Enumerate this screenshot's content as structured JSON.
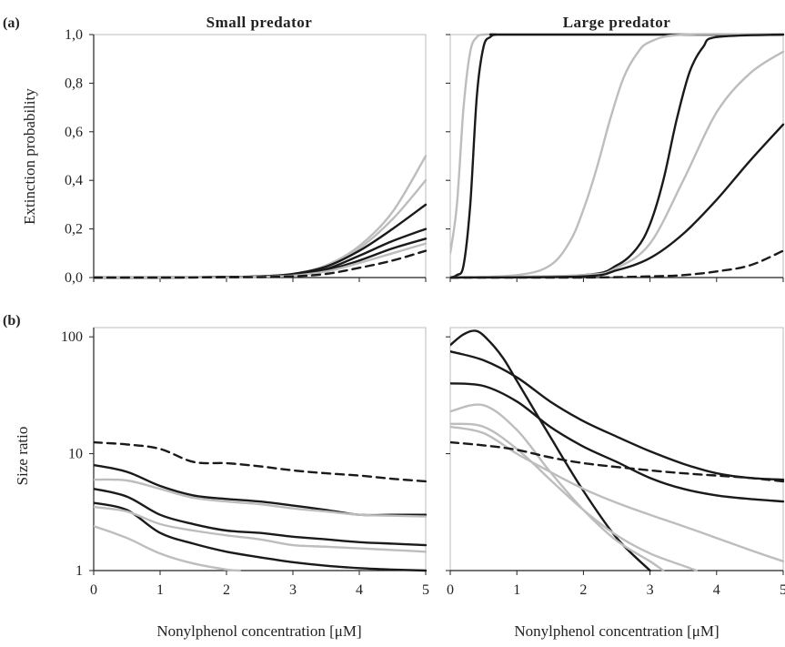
{
  "figure": {
    "col_titles": [
      "Small predator",
      "Large predator"
    ],
    "panel_letters": [
      "(a)",
      "(b)"
    ],
    "xlabel": "Nonylphenol concentration [μM]",
    "ylabel_a": "Extinction probability",
    "ylabel_b": "Size ratio",
    "xticks": [
      "0",
      "1",
      "2",
      "3",
      "4",
      "5"
    ],
    "yticks_a": [
      "0,0",
      "0,2",
      "0,4",
      "0,6",
      "0,8",
      "1,0"
    ],
    "yticks_b": [
      "1",
      "10",
      "100"
    ]
  },
  "colors": {
    "black": "#1a1a1a",
    "grey": "#bdbdbd"
  },
  "chart_data": [
    {
      "id": "small-extinction",
      "type": "line",
      "title": "Small predator",
      "panel": "(a)",
      "xlabel": "",
      "ylabel": "Extinction probability",
      "xlim": [
        0,
        5
      ],
      "ylim": [
        0,
        1
      ],
      "series": [
        {
          "color": "grey",
          "dash": false,
          "x": [
            0,
            1,
            2,
            2.5,
            3,
            3.5,
            4,
            4.5,
            5
          ],
          "y": [
            0,
            0,
            0.002,
            0.005,
            0.015,
            0.05,
            0.13,
            0.27,
            0.5
          ]
        },
        {
          "color": "grey",
          "dash": false,
          "x": [
            0,
            1,
            2,
            2.5,
            3,
            3.5,
            4,
            4.5,
            5
          ],
          "y": [
            0,
            0,
            0.002,
            0.005,
            0.015,
            0.045,
            0.12,
            0.24,
            0.4
          ]
        },
        {
          "color": "black",
          "dash": false,
          "x": [
            0,
            1,
            2,
            2.5,
            3,
            3.5,
            4,
            4.5,
            5
          ],
          "y": [
            0,
            0,
            0.002,
            0.005,
            0.015,
            0.045,
            0.11,
            0.2,
            0.3
          ]
        },
        {
          "color": "black",
          "dash": false,
          "x": [
            0,
            1,
            2,
            2.5,
            3,
            3.5,
            4,
            4.5,
            5
          ],
          "y": [
            0,
            0,
            0.002,
            0.004,
            0.012,
            0.035,
            0.09,
            0.15,
            0.2
          ]
        },
        {
          "color": "black",
          "dash": false,
          "x": [
            0,
            1,
            2,
            2.5,
            3,
            3.5,
            4,
            4.5,
            5
          ],
          "y": [
            0,
            0,
            0.002,
            0.004,
            0.01,
            0.03,
            0.07,
            0.12,
            0.16
          ]
        },
        {
          "color": "grey",
          "dash": false,
          "x": [
            0,
            1,
            2,
            2.5,
            3,
            3.5,
            4,
            4.5,
            5
          ],
          "y": [
            0,
            0,
            0.001,
            0.003,
            0.008,
            0.025,
            0.06,
            0.1,
            0.14
          ]
        },
        {
          "color": "black",
          "dash": true,
          "x": [
            0,
            1,
            2,
            2.5,
            3,
            3.5,
            4,
            4.5,
            5
          ],
          "y": [
            0,
            0,
            0.001,
            0.002,
            0.005,
            0.015,
            0.04,
            0.07,
            0.11
          ]
        }
      ]
    },
    {
      "id": "large-extinction",
      "type": "line",
      "title": "Large predator",
      "panel": "(a)",
      "xlabel": "",
      "ylabel": "",
      "xlim": [
        0,
        5
      ],
      "ylim": [
        0,
        1
      ],
      "series": [
        {
          "color": "grey",
          "dash": false,
          "x": [
            0,
            0.1,
            0.2,
            0.3,
            0.4,
            0.5,
            0.7,
            1,
            5
          ],
          "y": [
            0.1,
            0.3,
            0.7,
            0.93,
            0.99,
            1,
            1,
            1,
            1
          ]
        },
        {
          "color": "black",
          "dash": false,
          "x": [
            0,
            0.1,
            0.2,
            0.3,
            0.4,
            0.5,
            0.6,
            0.7,
            1,
            5
          ],
          "y": [
            0,
            0.01,
            0.05,
            0.3,
            0.75,
            0.95,
            0.99,
            1,
            1,
            1
          ]
        },
        {
          "color": "grey",
          "dash": false,
          "x": [
            0,
            1,
            1.5,
            1.8,
            2,
            2.2,
            2.4,
            2.6,
            2.8,
            3,
            3.5,
            5
          ],
          "y": [
            0,
            0.01,
            0.05,
            0.15,
            0.28,
            0.45,
            0.65,
            0.82,
            0.92,
            0.97,
            1,
            1
          ]
        },
        {
          "color": "black",
          "dash": false,
          "x": [
            0,
            2,
            2.5,
            2.8,
            3,
            3.2,
            3.4,
            3.6,
            3.8,
            4,
            5
          ],
          "y": [
            0,
            0.01,
            0.05,
            0.12,
            0.22,
            0.4,
            0.65,
            0.85,
            0.95,
            0.99,
            1
          ]
        },
        {
          "color": "grey",
          "dash": false,
          "x": [
            0,
            2,
            2.5,
            3,
            3.5,
            4,
            4.5,
            5
          ],
          "y": [
            0,
            0.01,
            0.04,
            0.14,
            0.4,
            0.68,
            0.84,
            0.93
          ]
        },
        {
          "color": "black",
          "dash": false,
          "x": [
            0,
            2,
            2.5,
            3,
            3.5,
            4,
            4.5,
            5
          ],
          "y": [
            0,
            0.005,
            0.03,
            0.08,
            0.18,
            0.32,
            0.48,
            0.63
          ]
        },
        {
          "color": "black",
          "dash": true,
          "x": [
            0,
            2,
            3,
            3.5,
            4,
            4.5,
            5
          ],
          "y": [
            0,
            0,
            0.005,
            0.01,
            0.025,
            0.05,
            0.11
          ]
        }
      ]
    },
    {
      "id": "small-sizeratio",
      "type": "line",
      "title": "",
      "panel": "(b)",
      "xlabel": "Nonylphenol concentration [μM]",
      "ylabel": "Size ratio",
      "xlim": [
        0,
        5
      ],
      "ylim": [
        1,
        120
      ],
      "yscale": "log",
      "series": [
        {
          "color": "black",
          "dash": true,
          "x": [
            0,
            0.5,
            1,
            1.5,
            2,
            2.5,
            3,
            3.5,
            4,
            4.5,
            5
          ],
          "y": [
            12.5,
            12,
            11,
            8.5,
            8.3,
            7.8,
            7.2,
            6.8,
            6.5,
            6.1,
            5.8
          ]
        },
        {
          "color": "black",
          "dash": false,
          "x": [
            0,
            0.5,
            1,
            1.5,
            2,
            2.5,
            3,
            3.5,
            4,
            4.5,
            5
          ],
          "y": [
            8,
            7,
            5.3,
            4.4,
            4.1,
            3.9,
            3.6,
            3.3,
            3.0,
            3.0,
            3.0
          ]
        },
        {
          "color": "grey",
          "dash": false,
          "x": [
            0,
            0.5,
            1,
            1.5,
            2,
            2.5,
            3,
            3.5,
            4,
            4.5,
            5
          ],
          "y": [
            6,
            5.9,
            5.0,
            4.2,
            3.9,
            3.7,
            3.4,
            3.2,
            3.0,
            2.95,
            2.9
          ]
        },
        {
          "color": "black",
          "dash": false,
          "x": [
            0,
            0.5,
            1,
            1.5,
            2,
            2.5,
            3,
            3.5,
            4,
            4.5,
            5
          ],
          "y": [
            5,
            4.3,
            3.0,
            2.5,
            2.2,
            2.1,
            1.95,
            1.85,
            1.75,
            1.7,
            1.65
          ]
        },
        {
          "color": "black",
          "dash": false,
          "x": [
            0,
            0.5,
            1,
            1.5,
            2,
            2.5,
            3,
            3.5,
            4,
            4.5,
            5
          ],
          "y": [
            3.8,
            3.3,
            2.1,
            1.7,
            1.45,
            1.3,
            1.18,
            1.1,
            1.05,
            1.02,
            1.0
          ]
        },
        {
          "color": "grey",
          "dash": false,
          "x": [
            0,
            0.5,
            1,
            1.5,
            2,
            2.5,
            3,
            3.5,
            4,
            4.5,
            5
          ],
          "y": [
            3.5,
            3.2,
            2.5,
            2.2,
            2.0,
            1.85,
            1.65,
            1.6,
            1.55,
            1.5,
            1.45
          ]
        },
        {
          "color": "grey",
          "dash": false,
          "x": [
            0,
            0.5,
            1,
            1.5,
            2,
            2.2
          ],
          "y": [
            2.4,
            1.9,
            1.4,
            1.15,
            1.02,
            1.0
          ]
        }
      ]
    },
    {
      "id": "large-sizeratio",
      "type": "line",
      "title": "",
      "panel": "(b)",
      "xlabel": "Nonylphenol concentration [μM]",
      "ylabel": "",
      "xlim": [
        0,
        5
      ],
      "ylim": [
        1,
        120
      ],
      "yscale": "log",
      "series": [
        {
          "color": "black",
          "dash": false,
          "x": [
            0,
            0.2,
            0.4,
            0.6,
            0.8,
            1,
            1.5,
            2,
            2.5,
            3
          ],
          "y": [
            85,
            105,
            112,
            90,
            65,
            42,
            14,
            4.8,
            1.9,
            1.0
          ]
        },
        {
          "color": "black",
          "dash": false,
          "x": [
            0,
            0.5,
            1,
            1.5,
            2,
            2.5,
            3,
            3.5,
            4,
            4.5,
            5
          ],
          "y": [
            75,
            63,
            45,
            28,
            19,
            14,
            10.5,
            8.2,
            6.8,
            6.2,
            6.0
          ]
        },
        {
          "color": "black",
          "dash": false,
          "x": [
            0,
            0.5,
            1,
            1.5,
            2,
            2.5,
            3,
            3.5,
            4,
            4.5,
            5
          ],
          "y": [
            40,
            38,
            28,
            17,
            11.5,
            8.5,
            6.2,
            5,
            4.4,
            4.1,
            3.9
          ]
        },
        {
          "color": "grey",
          "dash": false,
          "x": [
            0,
            0.5,
            1,
            1.5,
            2,
            2.5,
            3,
            3.2
          ],
          "y": [
            23,
            26,
            16,
            7,
            3.3,
            1.8,
            1.2,
            1.0
          ]
        },
        {
          "color": "grey",
          "dash": false,
          "x": [
            0,
            0.5,
            1,
            1.5,
            2,
            2.5,
            3,
            3.5,
            3.7
          ],
          "y": [
            18,
            17,
            11,
            6,
            3.3,
            2.0,
            1.4,
            1.1,
            1.0
          ]
        },
        {
          "color": "grey",
          "dash": false,
          "x": [
            0,
            0.5,
            1,
            1.5,
            2,
            2.5,
            3,
            3.5,
            4,
            4.5,
            5
          ],
          "y": [
            17,
            15,
            10,
            7,
            5,
            3.8,
            3,
            2.4,
            1.9,
            1.5,
            1.2
          ]
        },
        {
          "color": "black",
          "dash": true,
          "x": [
            0,
            0.5,
            1,
            1.5,
            2,
            2.5,
            3,
            3.5,
            4,
            4.5,
            5
          ],
          "y": [
            12.5,
            11.8,
            10.8,
            9.3,
            8.3,
            7.7,
            7.2,
            6.8,
            6.5,
            6.2,
            5.8
          ]
        }
      ]
    }
  ]
}
